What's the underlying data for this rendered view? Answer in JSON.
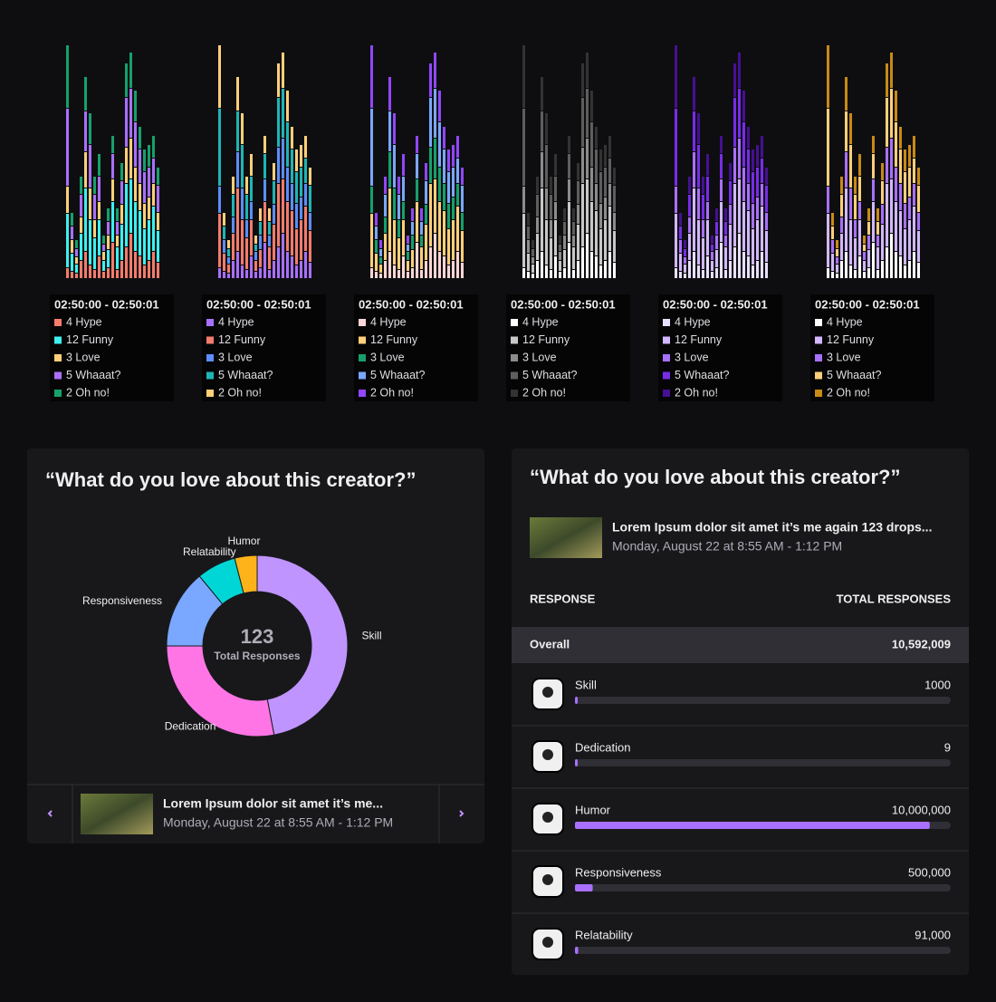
{
  "chart_data": [
    {
      "type": "bar",
      "stacked": true,
      "ylim": [
        0,
        260
      ],
      "series": [
        {
          "values": [
            12,
            8,
            6,
            20,
            30,
            15,
            10,
            25,
            8,
            12,
            40,
            10,
            20,
            35,
            50,
            30,
            25,
            15,
            20,
            30,
            18
          ]
        },
        {
          "values": [
            60,
            20,
            10,
            30,
            70,
            50,
            35,
            40,
            12,
            20,
            45,
            25,
            40,
            70,
            60,
            55,
            50,
            40,
            45,
            50,
            35
          ]
        },
        {
          "values": [
            30,
            15,
            8,
            18,
            40,
            35,
            20,
            20,
            10,
            16,
            25,
            13,
            22,
            40,
            45,
            38,
            30,
            28,
            25,
            25,
            20
          ]
        },
        {
          "values": [
            86,
            15,
            9,
            25,
            45,
            48,
            28,
            28,
            8,
            15,
            28,
            15,
            26,
            55,
            55,
            50,
            38,
            35,
            33,
            28,
            30
          ]
        },
        {
          "values": [
            70,
            15,
            10,
            20,
            38,
            35,
            20,
            25,
            10,
            15,
            20,
            15,
            20,
            38,
            40,
            35,
            25,
            25,
            25,
            25,
            20
          ]
        }
      ],
      "variants": [
        {
          "colors": [
            "#f47c6c",
            "#3ef0f0",
            "#ffcf7a",
            "#a970ff",
            "#16a06c"
          ]
        },
        {
          "colors": [
            "#a970ff",
            "#f47c6c",
            "#5c8eff",
            "#1fb5b5",
            "#ffcf7a"
          ]
        },
        {
          "colors": [
            "#ffd6d6",
            "#ffcf7a",
            "#16a06c",
            "#7aa7ff",
            "#9147ff"
          ]
        },
        {
          "colors": [
            "#ffffff",
            "#c8c8c8",
            "#8c8c8c",
            "#5e5e5e",
            "#333333"
          ]
        },
        {
          "colors": [
            "#e8e0ff",
            "#d2b8ff",
            "#a970ff",
            "#772ce8",
            "#451093"
          ]
        },
        {
          "colors": [
            "#ffffff",
            "#d2b8ff",
            "#a970ff",
            "#ffcf7a",
            "#c88a16"
          ]
        }
      ],
      "tooltip": {
        "title": "02:50:00 - 02:50:01",
        "items": [
          "4 Hype",
          "12 Funny",
          "3 Love",
          "5 Whaaat?",
          "2 Oh no!"
        ]
      }
    },
    {
      "type": "pie",
      "title": "“What do you love about this creator?”",
      "center_value": 123,
      "center_label": "Total Responses",
      "categories": [
        "Skill",
        "Dedication",
        "Responsiveness",
        "Relatability",
        "Humor"
      ],
      "values": [
        47,
        28,
        14,
        7,
        4
      ],
      "colors": [
        "#bf94ff",
        "#ff75e6",
        "#7aa7ff",
        "#00d6d6",
        "#ffb31a"
      ],
      "footer": {
        "title": "Lorem Ipsum dolor sit amet it’s me...",
        "date": "Monday, August 22 at 8:55 AM - 1:12 PM"
      }
    }
  ],
  "responses": {
    "title": "“What do you love about this creator?”",
    "video": {
      "title": "Lorem Ipsum dolor sit amet it’s me again 123 drops...",
      "date": "Monday, August 22 at 8:55 AM - 1:12 PM"
    },
    "columns": [
      "RESPONSE",
      "TOTAL RESPONSES"
    ],
    "overall": {
      "label": "Overall",
      "value": 10592009,
      "value_label": "10,592,009"
    },
    "names": [
      "Skill",
      "Dedication",
      "Humor",
      "Responsiveness",
      "Relatability"
    ],
    "values": [
      1000,
      9,
      10000000,
      500000,
      91000
    ],
    "value_labels": [
      "1000",
      "9",
      "10,000,000",
      "500,000",
      "91,000"
    ],
    "bar_color": "#a970ff"
  }
}
